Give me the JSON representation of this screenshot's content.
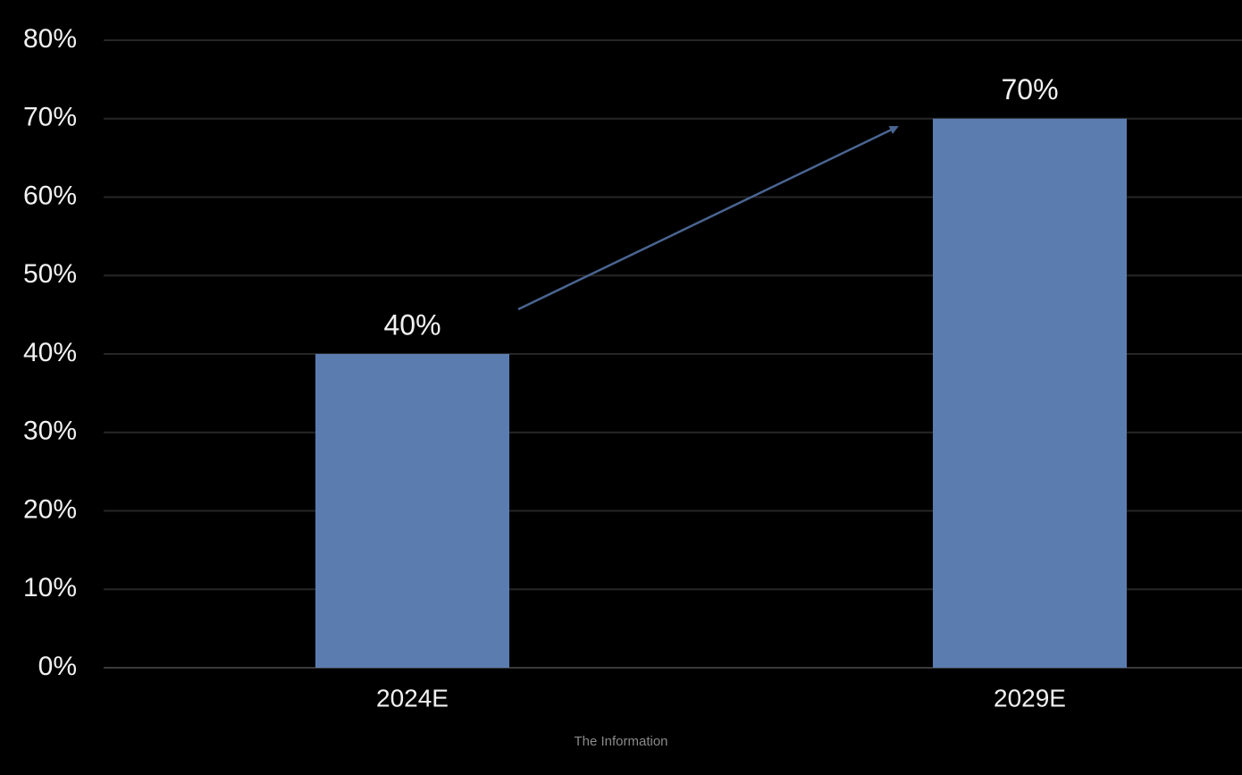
{
  "chart_data": {
    "type": "bar",
    "categories": [
      "2024E",
      "2029E"
    ],
    "values": [
      40,
      70
    ],
    "value_labels": [
      "40%",
      "70%"
    ],
    "color": "#5b7caf",
    "ylim": [
      0,
      80
    ],
    "yticks": [
      {
        "value": 0,
        "label": "0%"
      },
      {
        "value": 10,
        "label": "10%"
      },
      {
        "value": 20,
        "label": "20%"
      },
      {
        "value": 30,
        "label": "30%"
      },
      {
        "value": 40,
        "label": "40%"
      },
      {
        "value": 50,
        "label": "50%"
      },
      {
        "value": 60,
        "label": "60%"
      },
      {
        "value": 70,
        "label": "70%"
      },
      {
        "value": 80,
        "label": "80%"
      }
    ],
    "grid": true,
    "source": "The Information"
  }
}
